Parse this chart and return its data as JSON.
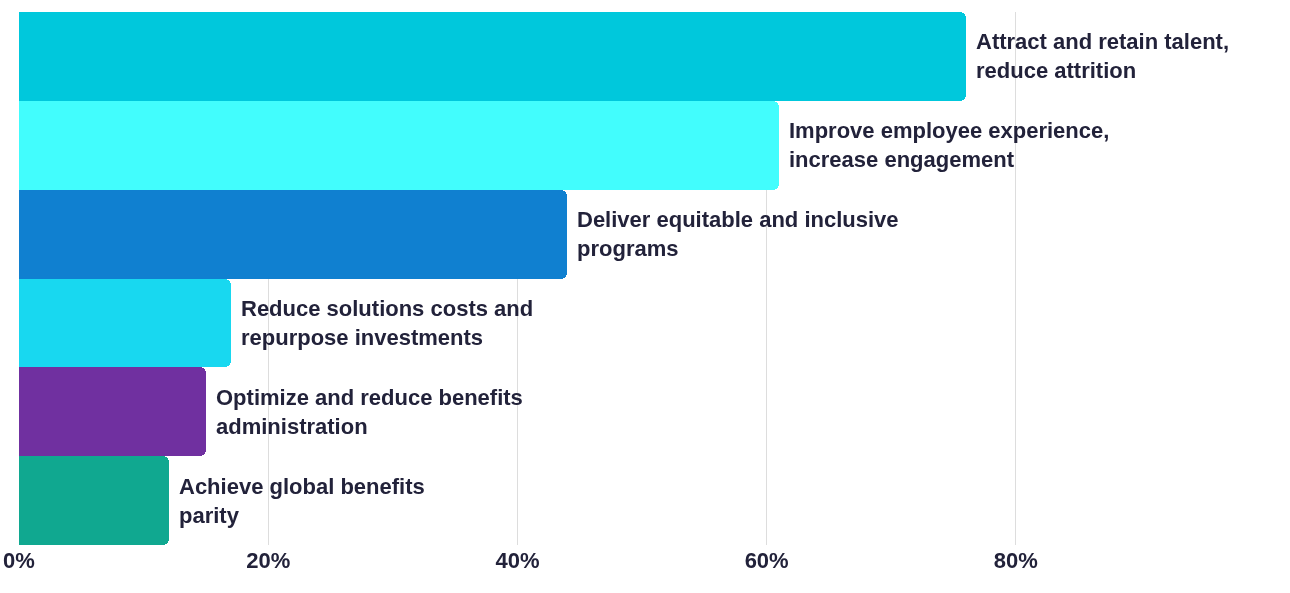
{
  "chart_data": {
    "type": "bar",
    "orientation": "horizontal",
    "categories": [
      "Attract and retain talent,\nreduce attrition",
      "Improve employee experience,\nincrease engagement",
      "Deliver equitable and inclusive\nprograms",
      "Reduce solutions costs and\nrepurpose investments",
      "Optimize and reduce benefits\nadministration",
      "Achieve global benefits\nparity"
    ],
    "values": [
      76,
      61,
      44,
      17,
      15,
      12
    ],
    "colors": [
      "#00c8dc",
      "#42fdfd",
      "#1080d0",
      "#18d8f0",
      "#7030a0",
      "#10a890"
    ],
    "xlim": [
      0,
      102
    ],
    "xticks": [
      {
        "value": 0,
        "label": "0%"
      },
      {
        "value": 20,
        "label": "20%"
      },
      {
        "value": 40,
        "label": "40%"
      },
      {
        "value": 60,
        "label": "60%"
      },
      {
        "value": 80,
        "label": "80%"
      }
    ],
    "grid": "x",
    "tick_labels": "x"
  }
}
